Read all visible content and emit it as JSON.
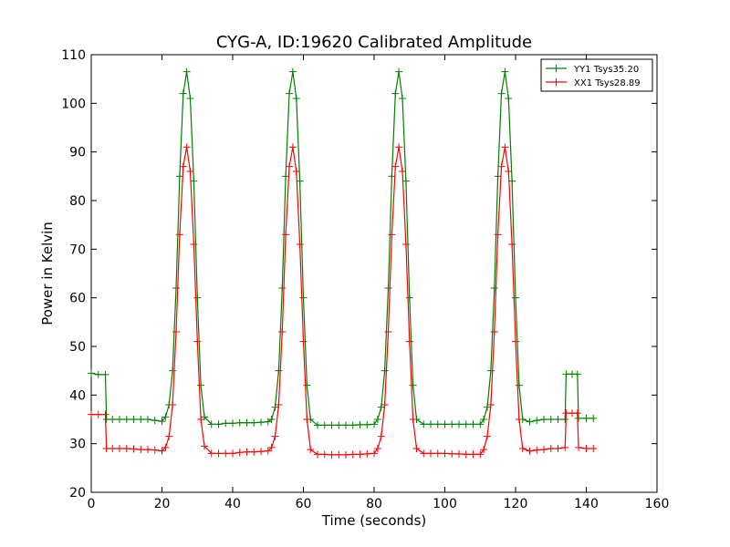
{
  "chart_data": {
    "type": "line",
    "title": "CYG-A, ID:19620 Calibrated Amplitude",
    "xlabel": "Time (seconds)",
    "ylabel": "Power in Kelvin",
    "xlim": [
      0,
      160
    ],
    "ylim": [
      20,
      110
    ],
    "xticks": [
      0,
      20,
      40,
      60,
      80,
      100,
      120,
      140,
      160
    ],
    "yticks": [
      20,
      30,
      40,
      50,
      60,
      70,
      80,
      90,
      100,
      110
    ],
    "grid": false,
    "legend_position": "top-right",
    "marker": "plus",
    "series": [
      {
        "name": "YY1 Tsys35.20",
        "color": "#008000",
        "x": [
          0,
          2,
          4,
          4.3,
          6,
          8,
          10,
          12,
          14,
          16,
          18,
          20,
          21,
          22,
          23,
          24,
          25,
          26,
          27,
          28,
          29,
          30,
          31,
          32,
          34,
          36,
          38,
          40,
          42,
          44,
          46,
          48,
          50,
          51,
          52,
          53,
          54,
          55,
          56,
          57,
          58,
          59,
          60,
          61,
          62,
          64,
          66,
          68,
          70,
          72,
          74,
          76,
          78,
          80,
          81,
          82,
          83,
          84,
          85,
          86,
          87,
          88,
          89,
          90,
          91,
          92,
          94,
          96,
          98,
          100,
          102,
          104,
          106,
          108,
          110,
          111,
          112,
          113,
          114,
          115,
          116,
          117,
          118,
          119,
          120,
          121,
          122,
          124,
          126,
          128,
          130,
          132,
          134,
          134.3,
          136,
          137.5,
          137.8,
          140,
          142
        ],
        "y": [
          44.5,
          44.2,
          44.2,
          35.0,
          35.0,
          35.0,
          35.0,
          35.0,
          35.0,
          35.0,
          34.8,
          34.6,
          35.5,
          38.0,
          45.0,
          62.0,
          85.0,
          102.0,
          106.5,
          101.0,
          84.0,
          60.0,
          42.0,
          35.5,
          34.0,
          34.0,
          34.2,
          34.2,
          34.3,
          34.3,
          34.3,
          34.4,
          34.5,
          35.0,
          37.5,
          45.0,
          62.0,
          85.0,
          102.0,
          106.5,
          101.0,
          84.0,
          60.0,
          42.0,
          35.0,
          33.8,
          33.8,
          33.8,
          33.8,
          33.8,
          33.8,
          33.9,
          33.9,
          34.0,
          35.0,
          37.5,
          45.0,
          62.0,
          85.0,
          102.0,
          106.5,
          101.0,
          84.0,
          60.0,
          42.0,
          35.0,
          34.0,
          34.0,
          34.0,
          34.0,
          34.0,
          34.0,
          34.0,
          34.0,
          34.0,
          35.0,
          37.5,
          45.0,
          62.0,
          85.0,
          102.0,
          106.5,
          101.0,
          84.0,
          60.0,
          42.0,
          35.0,
          34.5,
          34.8,
          35.0,
          35.0,
          35.0,
          35.0,
          44.3,
          44.3,
          44.3,
          35.2,
          35.2,
          35.2
        ]
      },
      {
        "name": "XX1 Tsys28.89",
        "color": "#ff0000",
        "x": [
          0,
          2,
          4,
          4.3,
          6,
          8,
          10,
          12,
          14,
          16,
          18,
          20,
          21,
          22,
          23,
          24,
          25,
          26,
          27,
          28,
          29,
          30,
          31,
          32,
          34,
          36,
          38,
          40,
          42,
          44,
          46,
          48,
          50,
          51,
          52,
          53,
          54,
          55,
          56,
          57,
          58,
          59,
          60,
          61,
          62,
          64,
          66,
          68,
          70,
          72,
          74,
          76,
          78,
          80,
          81,
          82,
          83,
          84,
          85,
          86,
          87,
          88,
          89,
          90,
          91,
          92,
          94,
          96,
          98,
          100,
          102,
          104,
          106,
          108,
          110,
          111,
          112,
          113,
          114,
          115,
          116,
          117,
          118,
          119,
          120,
          121,
          122,
          124,
          126,
          128,
          130,
          132,
          134,
          134.3,
          136,
          137.5,
          137.8,
          140,
          142
        ],
        "y": [
          36.0,
          36.0,
          36.0,
          29.0,
          29.0,
          29.0,
          29.0,
          28.9,
          28.8,
          28.8,
          28.7,
          28.5,
          29.2,
          31.5,
          38.0,
          53.0,
          73.0,
          87.0,
          91.0,
          86.0,
          71.0,
          51.0,
          35.0,
          29.5,
          28.0,
          28.0,
          28.0,
          28.0,
          28.2,
          28.3,
          28.3,
          28.4,
          28.5,
          29.2,
          31.5,
          38.0,
          53.0,
          73.0,
          87.0,
          91.0,
          86.0,
          71.0,
          51.0,
          35.0,
          28.8,
          27.8,
          27.8,
          27.7,
          27.7,
          27.7,
          27.8,
          27.8,
          27.9,
          28.0,
          29.0,
          31.5,
          38.0,
          53.0,
          73.0,
          87.0,
          91.0,
          86.0,
          71.0,
          51.0,
          35.0,
          29.0,
          28.0,
          28.0,
          28.0,
          28.0,
          27.9,
          27.9,
          27.8,
          27.8,
          27.8,
          28.8,
          31.5,
          38.0,
          53.0,
          73.0,
          87.0,
          91.0,
          86.0,
          71.0,
          51.0,
          35.0,
          29.0,
          28.5,
          28.7,
          28.8,
          29.0,
          29.0,
          29.2,
          36.3,
          36.3,
          36.3,
          29.2,
          29.0,
          29.0
        ]
      }
    ]
  }
}
